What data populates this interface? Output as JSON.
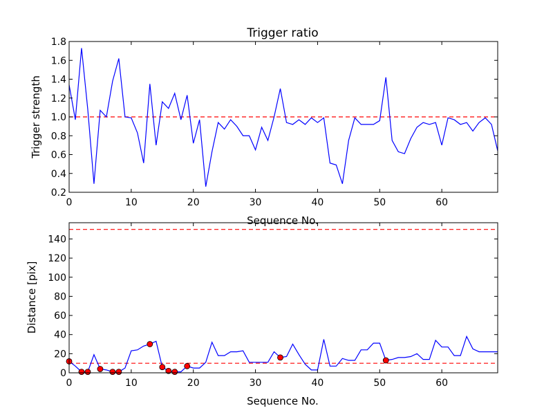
{
  "chart_data": [
    {
      "type": "line",
      "title": "Trigger ratio",
      "xlabel": "Sequence No.",
      "ylabel": "Trigger strength",
      "xlim": [
        0,
        69
      ],
      "ylim": [
        0.2,
        1.8
      ],
      "xticks": [
        0,
        10,
        20,
        30,
        40,
        50,
        60
      ],
      "yticks": [
        0.2,
        0.4,
        0.6,
        0.8,
        1.0,
        1.2,
        1.4,
        1.6,
        1.8
      ],
      "xtick_labels": [
        "0",
        "10",
        "20",
        "30",
        "40",
        "50",
        "60"
      ],
      "ytick_labels": [
        "0.2",
        "0.4",
        "0.6",
        "0.8",
        "1.0",
        "1.2",
        "1.4",
        "1.6",
        "1.8"
      ],
      "reference_lines": [
        1.0
      ],
      "series": [
        {
          "name": "Trigger strength",
          "color": "#0000ff",
          "values": [
            1.34,
            0.97,
            1.73,
            1.08,
            0.29,
            1.07,
            1.0,
            1.38,
            1.62,
            1.0,
            0.99,
            0.83,
            0.51,
            1.35,
            0.7,
            1.16,
            1.09,
            1.25,
            0.97,
            1.23,
            0.72,
            0.97,
            0.26,
            0.63,
            0.94,
            0.87,
            0.97,
            0.9,
            0.8,
            0.8,
            0.65,
            0.89,
            0.75,
            1.0,
            1.3,
            0.94,
            0.92,
            0.97,
            0.92,
            0.99,
            0.94,
            0.99,
            0.51,
            0.49,
            0.29,
            0.75,
            0.99,
            0.92,
            0.92,
            0.92,
            0.96,
            1.42,
            0.75,
            0.63,
            0.61,
            0.77,
            0.89,
            0.94,
            0.92,
            0.94,
            0.7,
            0.99,
            0.97,
            0.92,
            0.94,
            0.85,
            0.94,
            0.99,
            0.92,
            0.64
          ]
        }
      ]
    },
    {
      "type": "line",
      "title": "",
      "xlabel": "Sequence No.",
      "ylabel": "Distance [pix]",
      "xlim": [
        0,
        69
      ],
      "ylim": [
        0,
        157
      ],
      "xticks": [
        0,
        10,
        20,
        30,
        40,
        50,
        60
      ],
      "yticks": [
        0,
        20,
        40,
        60,
        80,
        100,
        120,
        140
      ],
      "xtick_labels": [
        "0",
        "10",
        "20",
        "30",
        "40",
        "50",
        "60"
      ],
      "ytick_labels": [
        "0",
        "20",
        "40",
        "60",
        "80",
        "100",
        "120",
        "140"
      ],
      "reference_lines": [
        10,
        150
      ],
      "series": [
        {
          "name": "Distance",
          "color": "#0000ff",
          "values": [
            12,
            7,
            1,
            1,
            19,
            4,
            3,
            1,
            1,
            5,
            23,
            24,
            28,
            30,
            33,
            6,
            2,
            1,
            1,
            7,
            5,
            5,
            11,
            32,
            18,
            18,
            22,
            22,
            23,
            11,
            11,
            11,
            11,
            22,
            16,
            17,
            30,
            19,
            9,
            3,
            3,
            35,
            7,
            7,
            15,
            13,
            13,
            24,
            24,
            31,
            31,
            13,
            14,
            16,
            16,
            17,
            20,
            14,
            14,
            34,
            27,
            27,
            18,
            18,
            38,
            25,
            22,
            22,
            22,
            22
          ]
        }
      ],
      "markers": {
        "name": "Highlighted points",
        "color": "#ff0000",
        "x": [
          0,
          2,
          3,
          5,
          7,
          8,
          13,
          15,
          16,
          17,
          19,
          34,
          51
        ],
        "y": [
          12,
          1,
          1,
          4,
          1,
          1,
          30,
          6,
          2,
          1,
          7,
          16,
          13
        ]
      }
    }
  ]
}
